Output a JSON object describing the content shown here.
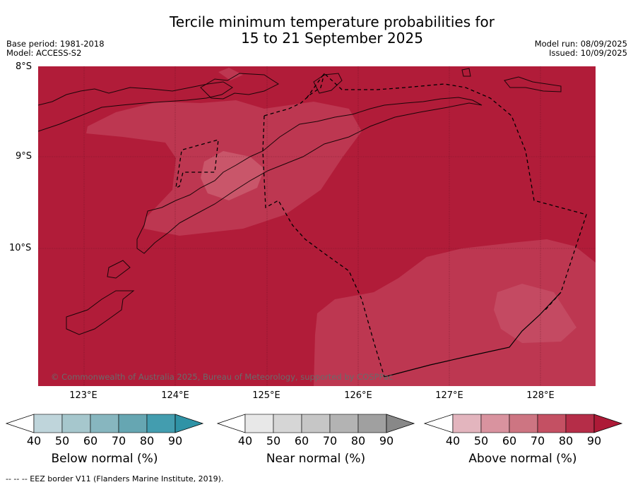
{
  "title": {
    "line1": "Tercile minimum temperature probabilities for",
    "line2": "15 to 21 September 2025"
  },
  "meta": {
    "base_period": "Base period: 1981-2018",
    "model": "Model: ACCESS-S2",
    "model_run": "Model run: 08/09/2025",
    "issued": "Issued: 10/09/2025"
  },
  "map": {
    "lat_labels": [
      "8°S",
      "9°S",
      "10°S"
    ],
    "lon_labels": [
      "123°E",
      "124°E",
      "125°E",
      "126°E",
      "127°E",
      "128°E"
    ],
    "copyright": "© Commonwealth of Australia 2025, Bureau of Meteorology, supported by COSPPac",
    "colors": {
      "background": "#b11c39",
      "land_band_light": "#c03a55",
      "ocean_pale": "#bf3b53"
    }
  },
  "colorbars": {
    "below": {
      "label": "Below normal (%)",
      "ticks": [
        "40",
        "50",
        "60",
        "70",
        "80",
        "90"
      ],
      "colors": [
        "#ffffff",
        "#bfd5db",
        "#a6c7cd",
        "#87b6bf",
        "#66a6b2",
        "#439daf",
        "#2f93a6"
      ]
    },
    "near": {
      "label": "Near normal (%)",
      "ticks": [
        "40",
        "50",
        "60",
        "70",
        "80",
        "90"
      ],
      "colors": [
        "#ffffff",
        "#e8e8e8",
        "#d6d6d6",
        "#c6c6c6",
        "#b3b3b3",
        "#a0a0a0",
        "#888888"
      ]
    },
    "above": {
      "label": "Above normal (%)",
      "ticks": [
        "40",
        "50",
        "60",
        "70",
        "80",
        "90"
      ],
      "colors": [
        "#ffffff",
        "#e3b5be",
        "#d9939f",
        "#cd7582",
        "#c45063",
        "#b52d48",
        "#ad1a37"
      ]
    }
  },
  "footnote": "--  --  -- EEZ border V11 (Flanders Marine Institute, 2019)."
}
